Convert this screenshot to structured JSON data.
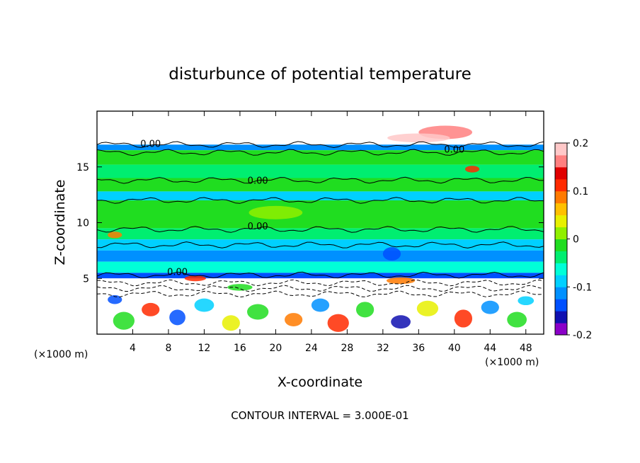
{
  "chart_data": {
    "type": "heatmap",
    "title": "disturbunce of potential temperature",
    "xlabel": "X-coordinate",
    "ylabel": "Z-coordinate",
    "x_unit_left": "(×1000 m)",
    "x_unit_right": "(×1000 m)",
    "xlim": [
      0,
      50
    ],
    "ylim": [
      0,
      20
    ],
    "x_ticks": [
      4,
      8,
      12,
      16,
      20,
      24,
      28,
      32,
      36,
      40,
      44,
      48
    ],
    "x_tick_labels": [
      "4",
      "8",
      "12",
      "16",
      "20",
      "24",
      "28",
      "32",
      "36",
      "40",
      "44",
      "48"
    ],
    "y_ticks": [
      5,
      10,
      15
    ],
    "y_tick_labels": [
      "5",
      "10",
      "15"
    ],
    "colorbar": {
      "range": [
        -0.2,
        0.2
      ],
      "ticks": [
        0.2,
        0.1,
        0,
        -0.1,
        -0.2
      ],
      "tick_labels": [
        "0.2",
        "0.1",
        "0",
        "-0.1",
        "-0.2"
      ],
      "colors": [
        "#8b00c8",
        "#1010b0",
        "#0050ff",
        "#0090ff",
        "#00d0ff",
        "#00ffd8",
        "#00ee70",
        "#20dd20",
        "#90f000",
        "#e8f000",
        "#ffc000",
        "#ff7a00",
        "#ff2a00",
        "#e00000",
        "#ff8080",
        "#ffc8c8"
      ]
    },
    "contour_labels": [
      "0.00",
      "0.00",
      "0.00",
      "0.00",
      "0.00"
    ],
    "contour_label_positions": [
      [
        6,
        16.8
      ],
      [
        18,
        13.5
      ],
      [
        18,
        9.4
      ],
      [
        9,
        5.3
      ],
      [
        40,
        16.3
      ]
    ],
    "bands": [
      {
        "z0": 17.0,
        "z1": 20.0,
        "value": 0.0,
        "color": "#ffffff"
      },
      {
        "z0": 16.5,
        "z1": 17.0,
        "value": -0.07,
        "color": "#0090ff"
      },
      {
        "z0": 15.2,
        "z1": 16.5,
        "value": 0.03,
        "color": "#20dd20"
      },
      {
        "z0": 14.0,
        "z1": 15.2,
        "value": 0.01,
        "color": "#00ee70"
      },
      {
        "z0": 12.8,
        "z1": 14.0,
        "value": 0.04,
        "color": "#20dd20"
      },
      {
        "z0": 12.0,
        "z1": 12.8,
        "value": -0.06,
        "color": "#00d0ff"
      },
      {
        "z0": 9.5,
        "z1": 12.0,
        "value": 0.03,
        "color": "#20dd20"
      },
      {
        "z0": 8.5,
        "z1": 9.5,
        "value": 0.0,
        "color": "#00ee70"
      },
      {
        "z0": 7.5,
        "z1": 8.5,
        "value": -0.05,
        "color": "#00d0ff"
      },
      {
        "z0": 6.5,
        "z1": 7.5,
        "value": -0.08,
        "color": "#0090ff"
      },
      {
        "z0": 5.5,
        "z1": 6.5,
        "value": -0.02,
        "color": "#00ffd8"
      },
      {
        "z0": 5.0,
        "z1": 5.5,
        "value": -0.12,
        "color": "#0050ff"
      },
      {
        "z0": 3.5,
        "z1": 5.0,
        "value": 0.0,
        "color": "#ffffff"
      },
      {
        "z0": 0.0,
        "z1": 3.5,
        "value": 0.0,
        "color": "#ffffff"
      }
    ],
    "grid": false,
    "legend": "colorbar-right"
  },
  "footer": {
    "contour_interval": "CONTOUR INTERVAL = 3.000E-01"
  }
}
